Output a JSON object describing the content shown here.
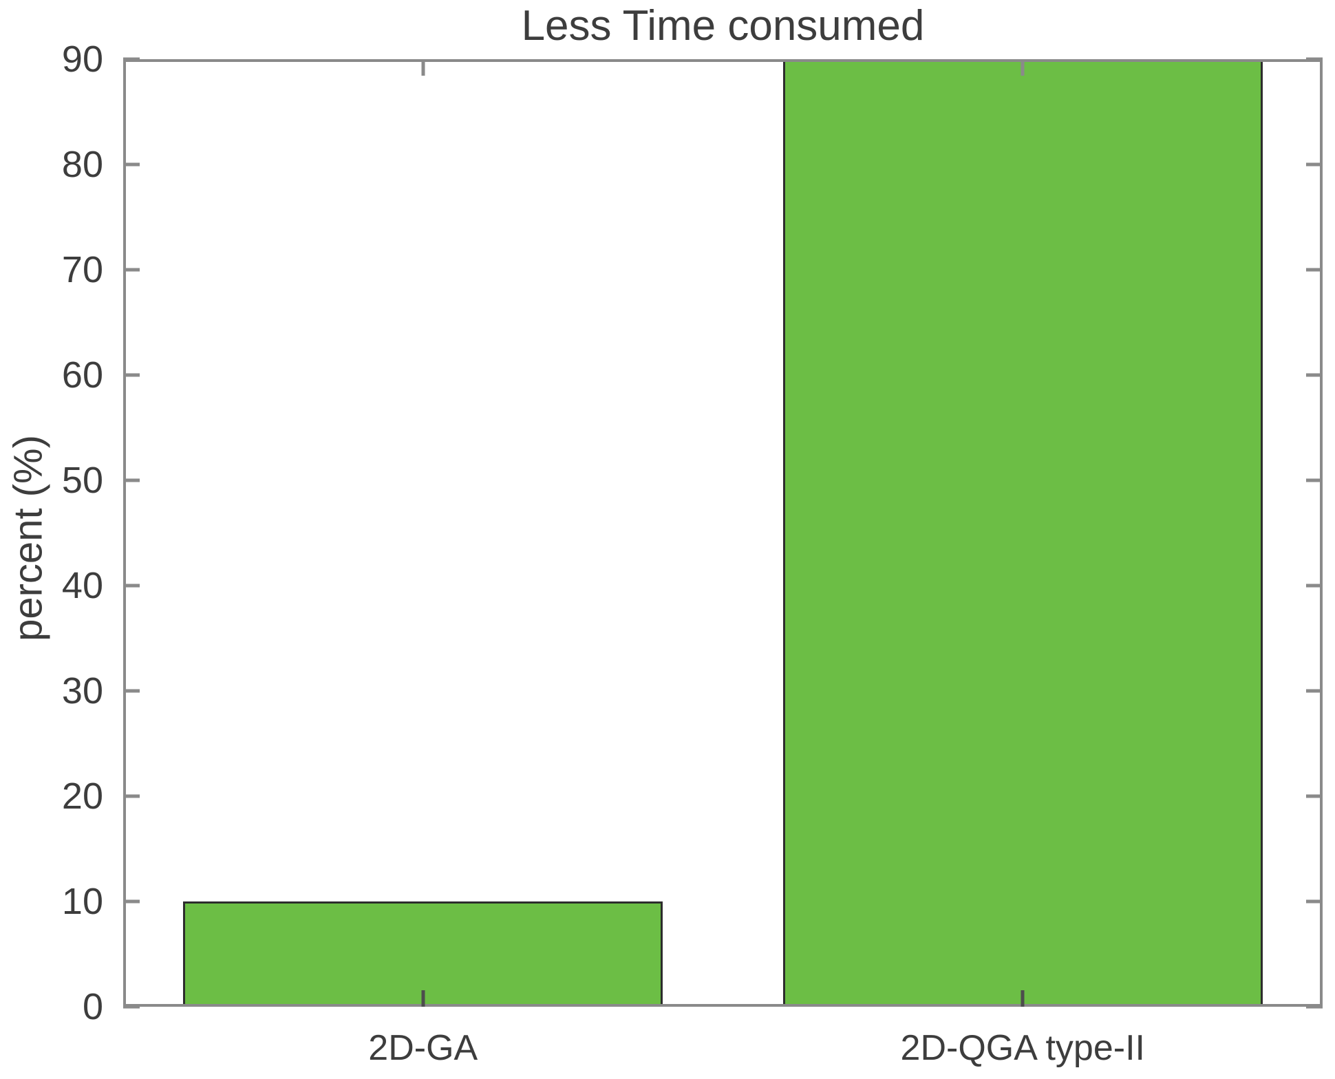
{
  "chart_data": {
    "type": "bar",
    "title": "Less Time consumed",
    "xlabel": "",
    "ylabel": "percent (%)",
    "categories": [
      "2D-GA",
      "2D-QGA type-II"
    ],
    "values": [
      10,
      90
    ],
    "ylim": [
      0,
      90
    ],
    "yticks": [
      0,
      10,
      20,
      30,
      40,
      50,
      60,
      70,
      80,
      90
    ],
    "grid": false,
    "legend": null,
    "frame": "box with mirrored inward ticks",
    "colors": {
      "bar_fill": "#6cbe45",
      "bar_edge": "#2d2d2d",
      "axis_frame": "#8a8a8a",
      "tick": "#8a8a8a",
      "category_tick": "#4d4d4d",
      "text": "#3d3d3d",
      "background": "#ffffff"
    }
  }
}
